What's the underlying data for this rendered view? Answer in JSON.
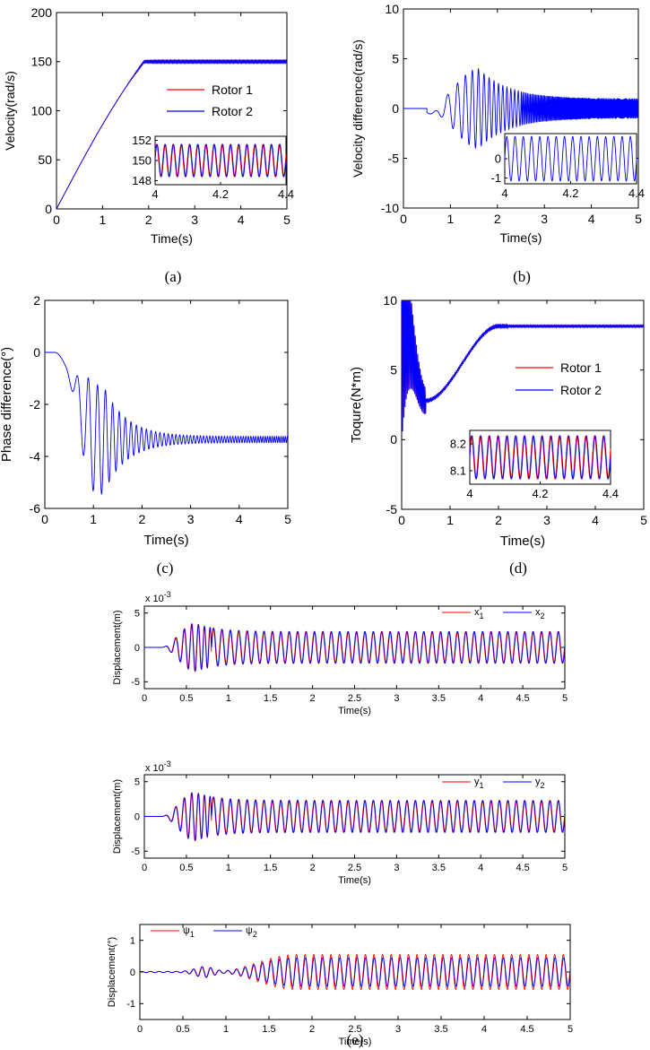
{
  "figure": {
    "colors": {
      "rotor1": "#ff0000",
      "rotor2": "#0000ff",
      "axis": "#000000"
    },
    "captions": [
      "(a)",
      "(b)",
      "(c)",
      "(d)",
      "(e)"
    ]
  },
  "chart_data": [
    {
      "id": "a",
      "type": "line",
      "xlabel": "Time(s)",
      "ylabel": "Velocity(rad/s)",
      "xlim": [
        0,
        5
      ],
      "ylim": [
        0,
        200
      ],
      "xticks": [
        "0",
        "1",
        "2",
        "3",
        "4",
        "5"
      ],
      "yticks": [
        "0",
        "50",
        "100",
        "150",
        "200"
      ],
      "legend": {
        "placement": "right",
        "entries": [
          "Rotor 1",
          "Rotor 2"
        ]
      },
      "series": [
        {
          "name": "Rotor 1",
          "color": "#ff0000",
          "model": "ramp",
          "start": 0,
          "rise_end": 1.9,
          "final": 150,
          "osc_amp": 1.5,
          "osc_freq": 40
        },
        {
          "name": "Rotor 2",
          "color": "#0000ff",
          "model": "ramp",
          "start": 0,
          "rise_end": 1.9,
          "final": 150,
          "osc_amp": 1.5,
          "osc_freq": 40,
          "phase": 0.4
        }
      ],
      "inset": {
        "xlim": [
          4,
          4.4
        ],
        "ylim": [
          147.6,
          152.4
        ],
        "xticks": [
          "4",
          "4.2",
          "4.4"
        ],
        "yticks": [
          "148",
          "150",
          "152"
        ],
        "series": [
          {
            "color": "#ff0000",
            "center": 150,
            "amp": 1.6,
            "cycles": 16,
            "phase": 0.4
          },
          {
            "color": "#0000ff",
            "center": 150,
            "amp": 1.6,
            "cycles": 16,
            "phase": 0
          }
        ]
      }
    },
    {
      "id": "b",
      "type": "line",
      "xlabel": "Time(s)",
      "ylabel": "Velocity difference(rad/s)",
      "xlim": [
        0,
        5
      ],
      "ylim": [
        -10,
        10
      ],
      "xticks": [
        "0",
        "1",
        "2",
        "3",
        "4",
        "5"
      ],
      "yticks": [
        "-10",
        "-5",
        "0",
        "5",
        "10"
      ],
      "series": [
        {
          "name": "Velocity difference",
          "color": "#0000ff",
          "model": "sync-osc",
          "onset": 0.5,
          "peak_t": 1.6,
          "peak_amp": 4,
          "steady_amp": 1,
          "offset": 0
        }
      ],
      "inset": {
        "xlim": [
          4,
          4.4
        ],
        "ylim": [
          -1.3,
          1.3
        ],
        "xticks": [
          "4",
          "4.2",
          "4.4"
        ],
        "yticks": [
          "0",
          "-1"
        ],
        "series": [
          {
            "color": "#0000ff",
            "center": 0,
            "amp": 1.15,
            "cycles": 16,
            "phase": 0
          }
        ]
      }
    },
    {
      "id": "c",
      "type": "line",
      "xlabel": "Time(s)",
      "ylabel": "Phase difference(°)",
      "xlim": [
        0,
        5
      ],
      "ylim": [
        -6,
        2
      ],
      "xticks": [
        "0",
        "1",
        "2",
        "3",
        "4",
        "5"
      ],
      "yticks": [
        "-6",
        "-4",
        "-2",
        "0",
        "2"
      ],
      "series": [
        {
          "name": "Phase difference",
          "color": "#0000ff",
          "model": "phase",
          "final": -3.35,
          "peak_amp": 2.1,
          "steady_amp": 0.12
        }
      ]
    },
    {
      "id": "d",
      "type": "line",
      "xlabel": "Time(s)",
      "ylabel": "Toqure(N*m)",
      "xlim": [
        0,
        5
      ],
      "ylim": [
        -5,
        10
      ],
      "xticks": [
        "0",
        "1",
        "2",
        "3",
        "4",
        "5"
      ],
      "yticks": [
        "-5",
        "0",
        "5",
        "10"
      ],
      "legend": {
        "placement": "right",
        "entries": [
          "Rotor 1",
          "Rotor 2"
        ]
      },
      "series": [
        {
          "name": "Rotor 1",
          "color": "#ff0000",
          "model": "torque",
          "final": 8.15,
          "min_point": [
            0.5,
            2.8
          ]
        },
        {
          "name": "Rotor 2",
          "color": "#0000ff",
          "model": "torque",
          "final": 8.15,
          "min_point": [
            0.5,
            2.8
          ]
        }
      ],
      "inset": {
        "xlim": [
          4,
          4.4
        ],
        "ylim": [
          8.05,
          8.25
        ],
        "xticks": [
          "4",
          "4.2",
          "4.4"
        ],
        "yticks": [
          "8.2",
          "8.1"
        ],
        "series": [
          {
            "color": "#ff0000",
            "center": 8.15,
            "amp": 0.08,
            "cycles": 16,
            "phase": 0.4
          },
          {
            "color": "#0000ff",
            "center": 8.15,
            "amp": 0.08,
            "cycles": 16,
            "phase": 0
          }
        ]
      }
    },
    {
      "id": "e1",
      "type": "line",
      "xlabel": "Time(s)",
      "ylabel": "Displacement(m)",
      "scale_note": "x 10-3",
      "xlim": [
        0,
        5
      ],
      "ylim": [
        -6,
        6
      ],
      "xticks": [
        "0",
        "0.5",
        "1",
        "1.5",
        "2",
        "2.5",
        "3",
        "3.5",
        "4",
        "4.5",
        "5"
      ],
      "yticks": [
        "-5",
        "0",
        "5"
      ],
      "legend": {
        "placement": "top-right",
        "entries": [
          "x1",
          "x2"
        ]
      },
      "series": [
        {
          "name": "x1",
          "color": "#ff0000",
          "model": "disp",
          "steady_amp": 2.3,
          "peak_amp": 3.5,
          "freq": 10,
          "phase": 0.3
        },
        {
          "name": "x2",
          "color": "#0000ff",
          "model": "disp",
          "steady_amp": 2.3,
          "peak_amp": 3.5,
          "freq": 10,
          "phase": 0
        }
      ]
    },
    {
      "id": "e2",
      "type": "line",
      "xlabel": "Time(s)",
      "ylabel": "Displacement(m)",
      "scale_note": "x 10-3",
      "xlim": [
        0,
        5
      ],
      "ylim": [
        -6,
        6
      ],
      "xticks": [
        "0",
        "0.5",
        "1",
        "1.5",
        "2",
        "2.5",
        "3",
        "3.5",
        "4",
        "4.5",
        "5"
      ],
      "yticks": [
        "-5",
        "0",
        "5"
      ],
      "legend": {
        "placement": "top-right",
        "entries": [
          "y1",
          "y2"
        ]
      },
      "series": [
        {
          "name": "y1",
          "color": "#ff0000",
          "model": "disp",
          "steady_amp": 2.3,
          "peak_amp": 3.5,
          "freq": 10,
          "phase": 0.3
        },
        {
          "name": "y2",
          "color": "#0000ff",
          "model": "disp",
          "steady_amp": 2.3,
          "peak_amp": 3.5,
          "freq": 10,
          "phase": 0
        }
      ]
    },
    {
      "id": "e3",
      "type": "line",
      "xlabel": "Time(s)",
      "ylabel": "Displacement(°)",
      "xlim": [
        0,
        5
      ],
      "ylim": [
        -1.5,
        1.5
      ],
      "xticks": [
        "0",
        "0.5",
        "1",
        "1.5",
        "2",
        "2.5",
        "3",
        "3.5",
        "4",
        "4.5",
        "5"
      ],
      "yticks": [
        "-1",
        "0",
        "1"
      ],
      "legend": {
        "placement": "top-left",
        "entries": [
          "ψ1",
          "ψ2"
        ]
      },
      "series": [
        {
          "name": "ψ1",
          "color": "#ff0000",
          "model": "psi",
          "steady_amp": 0.55,
          "freq": 10,
          "phase": 0.3
        },
        {
          "name": "ψ2",
          "color": "#0000ff",
          "model": "psi",
          "steady_amp": 0.45,
          "freq": 10,
          "phase": 0
        }
      ]
    }
  ]
}
